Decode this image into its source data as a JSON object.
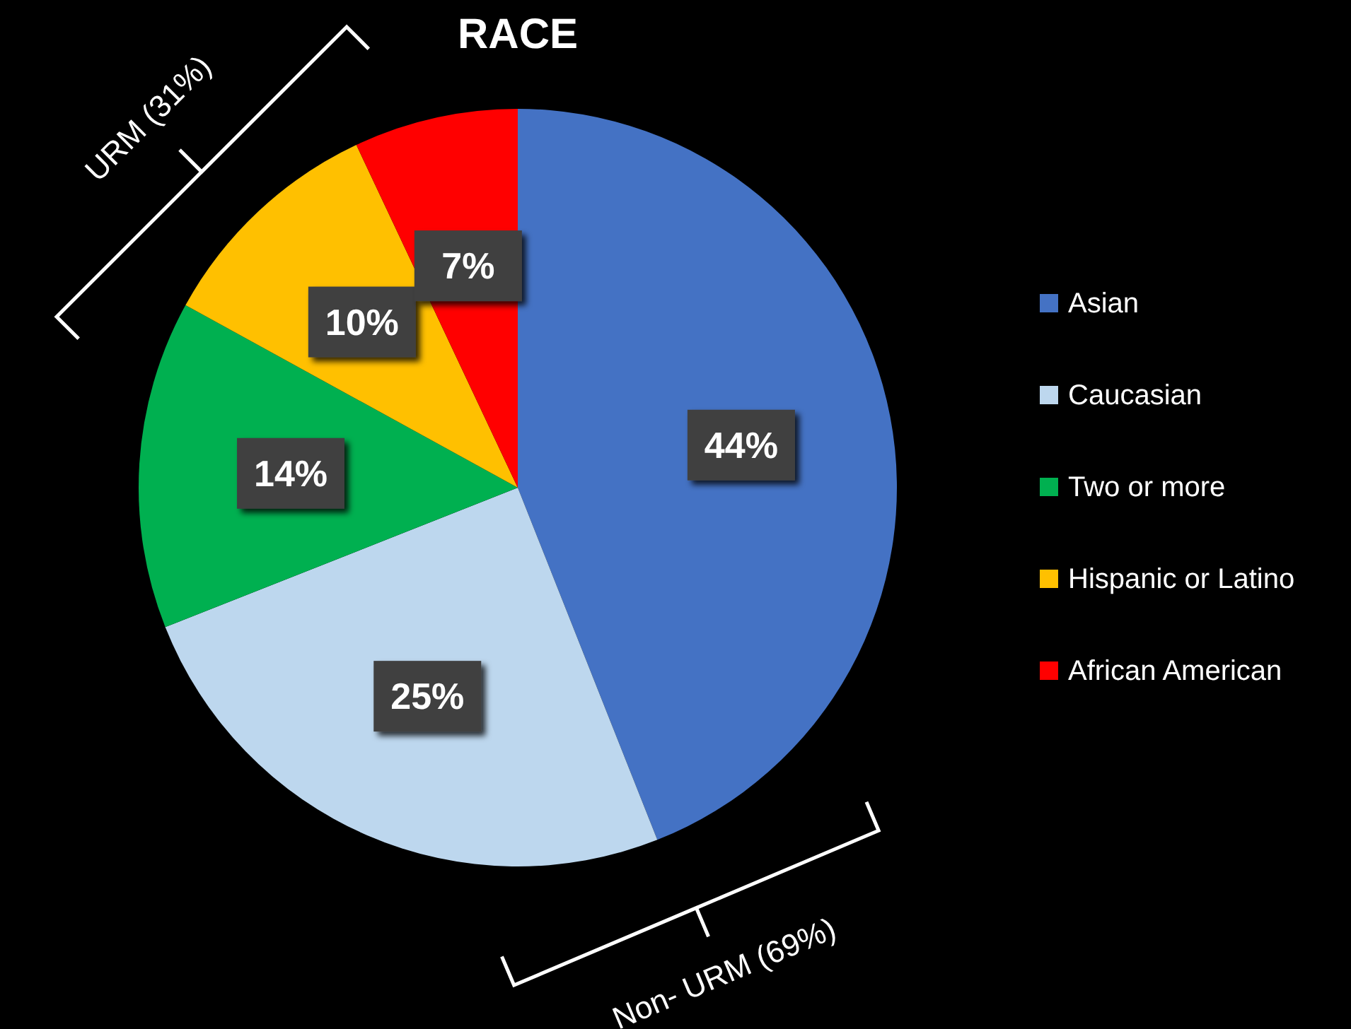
{
  "chart_data": {
    "type": "pie",
    "title": "RACE",
    "categories": [
      "Asian",
      "Caucasian",
      "Two or more",
      "Hispanic or Latino",
      "African American"
    ],
    "values": [
      44,
      25,
      14,
      10,
      7
    ],
    "colors": [
      "#4472c4",
      "#bdd7ee",
      "#00b050",
      "#ffc000",
      "#ff0000"
    ],
    "data_labels": true,
    "value_labels": [
      "44%",
      "25%",
      "14%",
      "10%",
      "7%"
    ],
    "legend": "right",
    "annotations": [
      "URM (31%)",
      "Non- URM (69%)"
    ]
  }
}
